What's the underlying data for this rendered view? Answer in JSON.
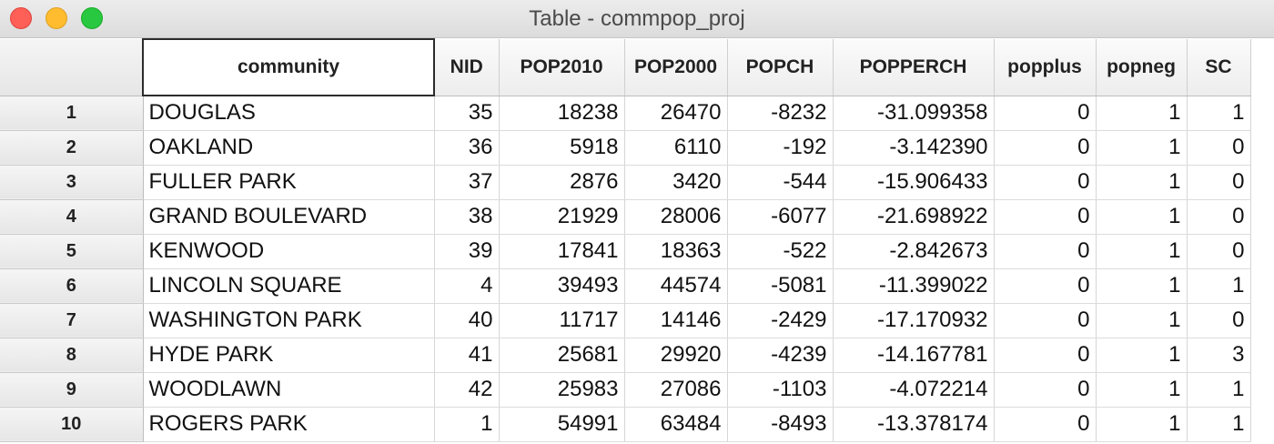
{
  "window": {
    "title": "Table - commpop_proj"
  },
  "table": {
    "columns": [
      "community",
      "NID",
      "POP2010",
      "POP2000",
      "POPCH",
      "POPPERCH",
      "popplus",
      "popneg",
      "SC"
    ],
    "rows": [
      {
        "num": "1",
        "cells": [
          "DOUGLAS",
          "35",
          "18238",
          "26470",
          "-8232",
          "-31.099358",
          "0",
          "1",
          "1"
        ]
      },
      {
        "num": "2",
        "cells": [
          "OAKLAND",
          "36",
          "5918",
          "6110",
          "-192",
          "-3.142390",
          "0",
          "1",
          "0"
        ]
      },
      {
        "num": "3",
        "cells": [
          "FULLER PARK",
          "37",
          "2876",
          "3420",
          "-544",
          "-15.906433",
          "0",
          "1",
          "0"
        ]
      },
      {
        "num": "4",
        "cells": [
          "GRAND BOULEVARD",
          "38",
          "21929",
          "28006",
          "-6077",
          "-21.698922",
          "0",
          "1",
          "0"
        ]
      },
      {
        "num": "5",
        "cells": [
          "KENWOOD",
          "39",
          "17841",
          "18363",
          "-522",
          "-2.842673",
          "0",
          "1",
          "0"
        ]
      },
      {
        "num": "6",
        "cells": [
          "LINCOLN SQUARE",
          "4",
          "39493",
          "44574",
          "-5081",
          "-11.399022",
          "0",
          "1",
          "1"
        ]
      },
      {
        "num": "7",
        "cells": [
          "WASHINGTON PARK",
          "40",
          "11717",
          "14146",
          "-2429",
          "-17.170932",
          "0",
          "1",
          "0"
        ]
      },
      {
        "num": "8",
        "cells": [
          "HYDE PARK",
          "41",
          "25681",
          "29920",
          "-4239",
          "-14.167781",
          "0",
          "1",
          "3"
        ]
      },
      {
        "num": "9",
        "cells": [
          "WOODLAWN",
          "42",
          "25983",
          "27086",
          "-1103",
          "-4.072214",
          "0",
          "1",
          "1"
        ]
      },
      {
        "num": "10",
        "cells": [
          "ROGERS PARK",
          "1",
          "54991",
          "63484",
          "-8493",
          "-13.378174",
          "0",
          "1",
          "1"
        ]
      }
    ]
  }
}
